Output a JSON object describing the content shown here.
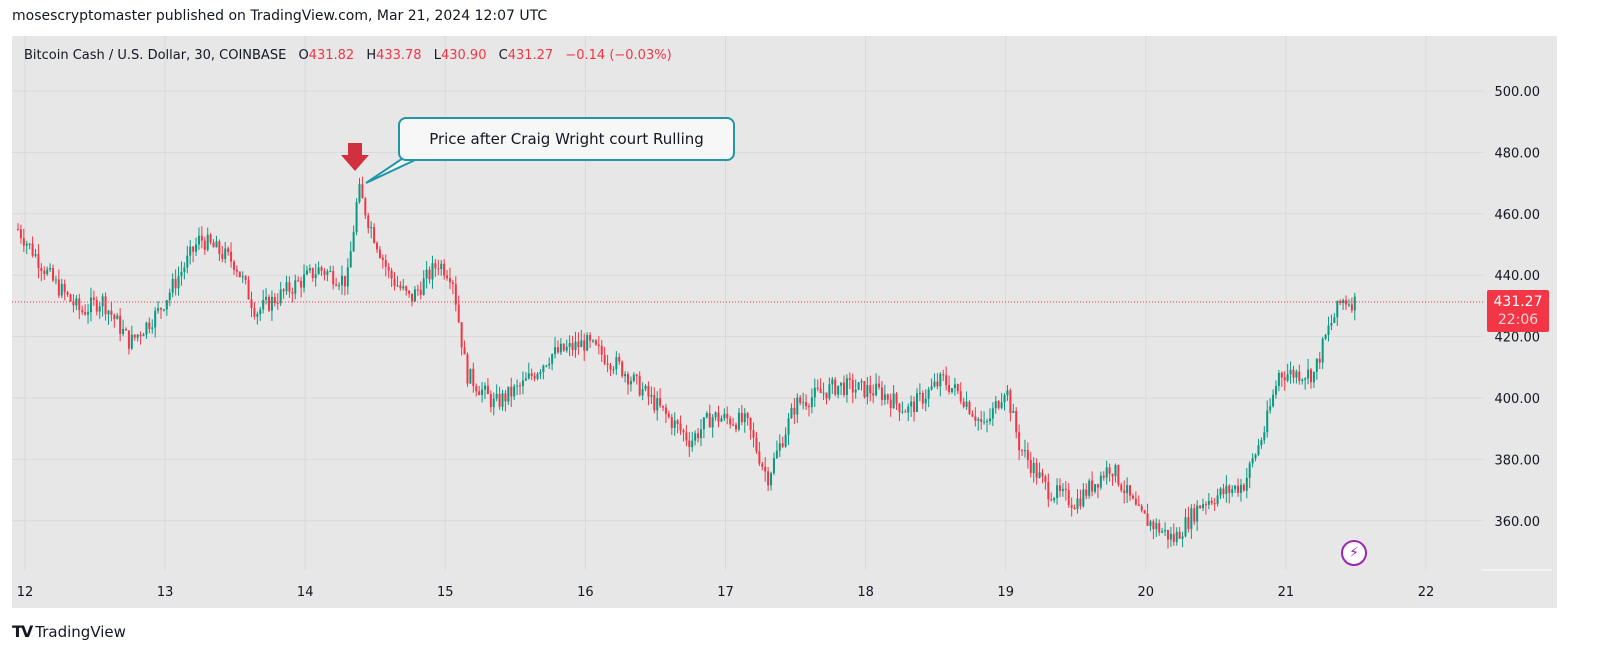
{
  "header": {
    "published_line": "mosescryptomaster published on TradingView.com, Mar 21, 2024 12:07 UTC"
  },
  "legend": {
    "symbol": "Bitcoin Cash / U.S. Dollar, 30, COINBASE",
    "open_label": "O",
    "open": "431.82",
    "high_label": "H",
    "high": "433.78",
    "low_label": "L",
    "low": "430.90",
    "close_label": "C",
    "close": "431.27",
    "change": "−0.14 (−0.03%)"
  },
  "annotation": {
    "callout_text": "Price after Craig Wright court Rulling",
    "arrow_icon": "down-arrow-icon"
  },
  "price_tag": {
    "price": "431.27",
    "countdown": "22:06"
  },
  "footer": {
    "brand_logo": "TV",
    "brand_name": "TradingView"
  },
  "colors": {
    "up": "#089981",
    "down": "#f23645",
    "background": "#e7e7e8",
    "grid": "#d9d9db",
    "callout_border": "#2196a6",
    "lightning": "#9c27b0"
  },
  "chart_data": {
    "type": "candlestick",
    "title": "Bitcoin Cash / U.S. Dollar, 30, COINBASE",
    "xlabel": "",
    "ylabel": "",
    "interval": "30m",
    "x_ticks": [
      "12",
      "13",
      "14",
      "15",
      "16",
      "17",
      "18",
      "19",
      "20",
      "21",
      "22"
    ],
    "y_ticks": [
      360,
      380,
      400,
      420,
      440,
      460,
      480,
      500
    ],
    "ylim": [
      345,
      517
    ],
    "last_price": 431.27,
    "grid": true,
    "approx_close_path": [
      {
        "day": 11.95,
        "price": 455
      },
      {
        "day": 12.2,
        "price": 438
      },
      {
        "day": 12.4,
        "price": 428
      },
      {
        "day": 12.55,
        "price": 432
      },
      {
        "day": 12.75,
        "price": 418
      },
      {
        "day": 12.95,
        "price": 428
      },
      {
        "day": 13.1,
        "price": 440
      },
      {
        "day": 13.25,
        "price": 452
      },
      {
        "day": 13.5,
        "price": 444
      },
      {
        "day": 13.65,
        "price": 428
      },
      {
        "day": 13.9,
        "price": 436
      },
      {
        "day": 14.1,
        "price": 442
      },
      {
        "day": 14.3,
        "price": 438
      },
      {
        "day": 14.38,
        "price": 468
      },
      {
        "day": 14.45,
        "price": 458
      },
      {
        "day": 14.6,
        "price": 440
      },
      {
        "day": 14.75,
        "price": 432
      },
      {
        "day": 14.95,
        "price": 444
      },
      {
        "day": 15.05,
        "price": 440
      },
      {
        "day": 15.15,
        "price": 408
      },
      {
        "day": 15.35,
        "price": 398
      },
      {
        "day": 15.55,
        "price": 404
      },
      {
        "day": 15.75,
        "price": 414
      },
      {
        "day": 16.0,
        "price": 418
      },
      {
        "day": 16.25,
        "price": 410
      },
      {
        "day": 16.5,
        "price": 398
      },
      {
        "day": 16.75,
        "price": 386
      },
      {
        "day": 16.9,
        "price": 394
      },
      {
        "day": 17.15,
        "price": 392
      },
      {
        "day": 17.3,
        "price": 374
      },
      {
        "day": 17.5,
        "price": 398
      },
      {
        "day": 17.8,
        "price": 404
      },
      {
        "day": 18.1,
        "price": 402
      },
      {
        "day": 18.3,
        "price": 396
      },
      {
        "day": 18.55,
        "price": 406
      },
      {
        "day": 18.7,
        "price": 400
      },
      {
        "day": 18.85,
        "price": 390
      },
      {
        "day": 19.0,
        "price": 404
      },
      {
        "day": 19.1,
        "price": 384
      },
      {
        "day": 19.3,
        "price": 370
      },
      {
        "day": 19.5,
        "price": 366
      },
      {
        "day": 19.75,
        "price": 378
      },
      {
        "day": 19.95,
        "price": 362
      },
      {
        "day": 20.2,
        "price": 354
      },
      {
        "day": 20.4,
        "price": 366
      },
      {
        "day": 20.7,
        "price": 372
      },
      {
        "day": 20.85,
        "price": 390
      },
      {
        "day": 20.95,
        "price": 408
      },
      {
        "day": 21.2,
        "price": 408
      },
      {
        "day": 21.3,
        "price": 422
      },
      {
        "day": 21.4,
        "price": 432
      },
      {
        "day": 21.5,
        "price": 431.27
      }
    ]
  }
}
